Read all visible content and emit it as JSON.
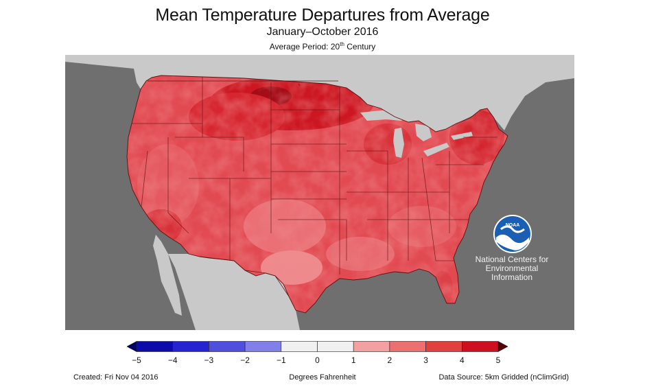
{
  "header": {
    "title": "Mean Temperature Departures from Average",
    "subtitle": "January–October 2016",
    "avg_period_prefix": "Average Period: 20",
    "avg_period_sup": "th",
    "avg_period_suffix": " Century"
  },
  "map": {
    "ocean_color": "#6f6f6f",
    "land_outside_color": "#c9c9c9",
    "lake_color": "#c9c9c9",
    "border_color": "#5a1010"
  },
  "logo": {
    "icon": "noaa-logo-icon",
    "name": "NOAA",
    "lines": [
      "National Centers for",
      "Environmental",
      "Information"
    ]
  },
  "legend": {
    "unit_label": "Degrees Fahrenheit",
    "ticks": [
      "−5",
      "−4",
      "−3",
      "−2",
      "−1",
      "0",
      "1",
      "2",
      "3",
      "4",
      "5"
    ],
    "colors": [
      "#0c0ca8",
      "#2424d0",
      "#4f4fde",
      "#8080e8",
      "#f0f0f0",
      "#f0f0f0",
      "#f2a0a0",
      "#ec7070",
      "#e04040",
      "#cc1020"
    ],
    "low_color": "#000066",
    "high_color": "#550000"
  },
  "footer": {
    "created": "Created: Fri Nov 04 2016",
    "source": "Data Source: 5km Gridded (nClimGrid)"
  }
}
